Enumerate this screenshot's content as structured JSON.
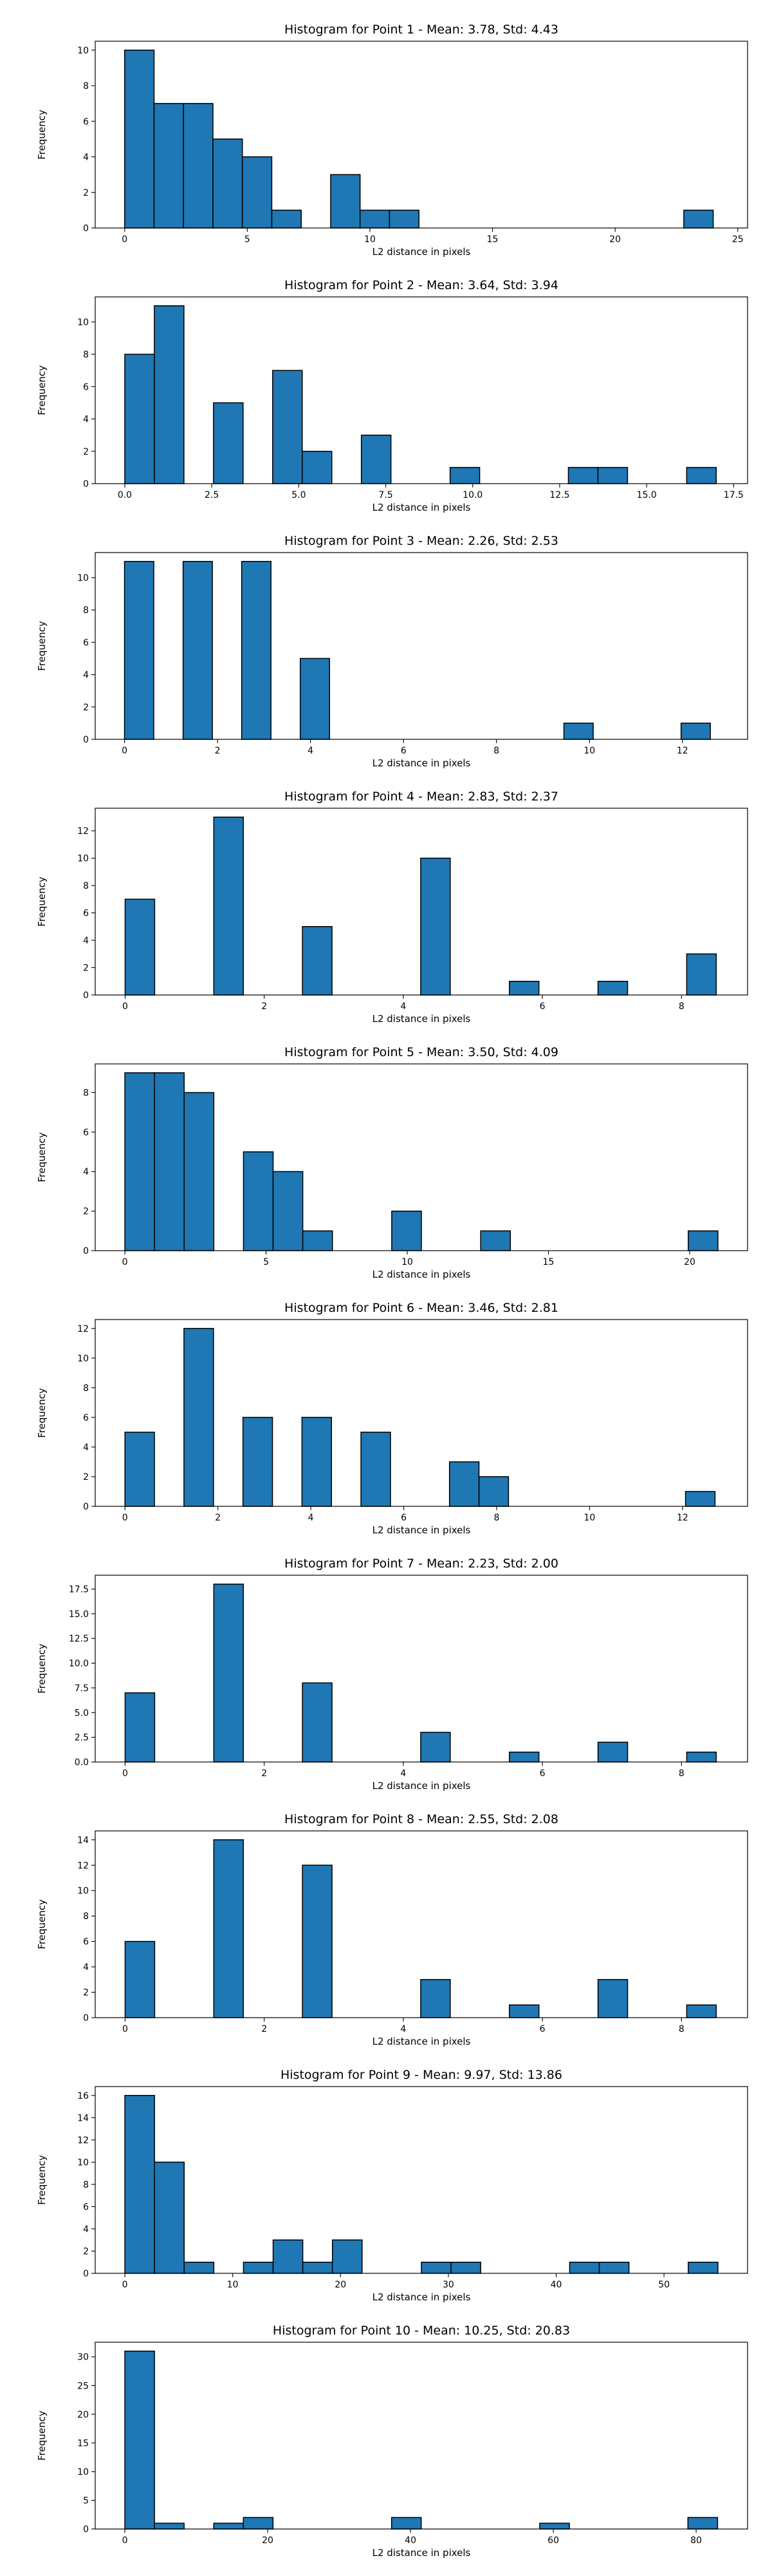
{
  "chart_data": [
    {
      "type": "bar",
      "title": "Histogram for Point 1 - Mean: 3.78, Std: 4.43",
      "xlabel": "L2 distance in pixels",
      "ylabel": "Frequency",
      "xlim": [
        -1.2,
        25.4
      ],
      "ylim": [
        0,
        10.5
      ],
      "xticks": [
        0,
        5,
        10,
        15,
        20,
        25
      ],
      "xtick_labels": [
        "0",
        "5",
        "10",
        "15",
        "20",
        "25"
      ],
      "yticks": [
        0,
        2,
        4,
        6,
        8,
        10
      ],
      "ytick_labels": [
        "0",
        "2",
        "4",
        "6",
        "8",
        "10"
      ],
      "bar_width": 1.2,
      "bars": [
        {
          "x": 0,
          "count": 10
        },
        {
          "x": 1.2,
          "count": 7
        },
        {
          "x": 2.4,
          "count": 7
        },
        {
          "x": 3.6,
          "count": 5
        },
        {
          "x": 4.8,
          "count": 4
        },
        {
          "x": 6.0,
          "count": 1
        },
        {
          "x": 8.4,
          "count": 3
        },
        {
          "x": 9.6,
          "count": 1
        },
        {
          "x": 10.8,
          "count": 1
        },
        {
          "x": 22.8,
          "count": 1
        }
      ]
    },
    {
      "type": "bar",
      "title": "Histogram for Point 2 - Mean: 3.64, Std: 3.94",
      "xlabel": "L2 distance in pixels",
      "ylabel": "Frequency",
      "xlim": [
        -0.85,
        17.9
      ],
      "ylim": [
        0,
        11.55
      ],
      "xticks": [
        0,
        2.5,
        5,
        7.5,
        10,
        12.5,
        15,
        17.5
      ],
      "xtick_labels": [
        "0.0",
        "2.5",
        "5.0",
        "7.5",
        "10.0",
        "12.5",
        "15.0",
        "17.5"
      ],
      "yticks": [
        0,
        2,
        4,
        6,
        8,
        10
      ],
      "ytick_labels": [
        "0",
        "2",
        "4",
        "6",
        "8",
        "10"
      ],
      "bar_width": 0.85,
      "bars": [
        {
          "x": 0,
          "count": 8
        },
        {
          "x": 0.85,
          "count": 11
        },
        {
          "x": 2.55,
          "count": 5
        },
        {
          "x": 4.25,
          "count": 7
        },
        {
          "x": 5.1,
          "count": 2
        },
        {
          "x": 6.8,
          "count": 3
        },
        {
          "x": 9.35,
          "count": 1
        },
        {
          "x": 12.75,
          "count": 1
        },
        {
          "x": 13.6,
          "count": 1
        },
        {
          "x": 16.15,
          "count": 1
        }
      ]
    },
    {
      "type": "bar",
      "title": "Histogram for Point 3 - Mean: 2.26, Std: 2.53",
      "xlabel": "L2 distance in pixels",
      "ylabel": "Frequency",
      "xlim": [
        -0.63,
        13.4
      ],
      "ylim": [
        0,
        11.55
      ],
      "xticks": [
        0,
        2,
        4,
        6,
        8,
        10,
        12
      ],
      "xtick_labels": [
        "0",
        "2",
        "4",
        "6",
        "8",
        "10",
        "12"
      ],
      "yticks": [
        0,
        2,
        4,
        6,
        8,
        10
      ],
      "ytick_labels": [
        "0",
        "2",
        "4",
        "6",
        "8",
        "10"
      ],
      "bar_width": 0.63,
      "bars": [
        {
          "x": 0,
          "count": 11
        },
        {
          "x": 1.26,
          "count": 11
        },
        {
          "x": 2.52,
          "count": 11
        },
        {
          "x": 3.78,
          "count": 5
        },
        {
          "x": 9.45,
          "count": 1
        },
        {
          "x": 11.97,
          "count": 1
        }
      ]
    },
    {
      "type": "bar",
      "title": "Histogram for Point 4 - Mean: 2.83, Std: 2.37",
      "xlabel": "L2 distance in pixels",
      "ylabel": "Frequency",
      "xlim": [
        -0.43,
        8.95
      ],
      "ylim": [
        0,
        13.65
      ],
      "xticks": [
        0,
        2,
        4,
        6,
        8
      ],
      "xtick_labels": [
        "0",
        "2",
        "4",
        "6",
        "8"
      ],
      "yticks": [
        0,
        2,
        4,
        6,
        8,
        10,
        12
      ],
      "ytick_labels": [
        "0",
        "2",
        "4",
        "6",
        "8",
        "10",
        "12"
      ],
      "bar_width": 0.425,
      "bars": [
        {
          "x": 0,
          "count": 7
        },
        {
          "x": 1.275,
          "count": 13
        },
        {
          "x": 2.55,
          "count": 5
        },
        {
          "x": 4.25,
          "count": 10
        },
        {
          "x": 5.525,
          "count": 1
        },
        {
          "x": 6.8,
          "count": 1
        },
        {
          "x": 8.075,
          "count": 3
        }
      ]
    },
    {
      "type": "bar",
      "title": "Histogram for Point 5 - Mean: 3.50, Std: 4.09",
      "xlabel": "L2 distance in pixels",
      "ylabel": "Frequency",
      "xlim": [
        -1.05,
        22.05
      ],
      "ylim": [
        0,
        9.45
      ],
      "xticks": [
        0,
        5,
        10,
        15,
        20
      ],
      "xtick_labels": [
        "0",
        "5",
        "10",
        "15",
        "20"
      ],
      "yticks": [
        0,
        2,
        4,
        6,
        8
      ],
      "ytick_labels": [
        "0",
        "2",
        "4",
        "6",
        "8"
      ],
      "bar_width": 1.05,
      "bars": [
        {
          "x": 0,
          "count": 9
        },
        {
          "x": 1.05,
          "count": 9
        },
        {
          "x": 2.1,
          "count": 8
        },
        {
          "x": 4.2,
          "count": 5
        },
        {
          "x": 5.25,
          "count": 4
        },
        {
          "x": 6.3,
          "count": 1
        },
        {
          "x": 9.45,
          "count": 2
        },
        {
          "x": 12.6,
          "count": 1
        },
        {
          "x": 19.95,
          "count": 1
        }
      ]
    },
    {
      "type": "bar",
      "title": "Histogram for Point 6 - Mean: 3.46, Std: 2.81",
      "xlabel": "L2 distance in pixels",
      "ylabel": "Frequency",
      "xlim": [
        -0.64,
        13.4
      ],
      "ylim": [
        0,
        12.6
      ],
      "xticks": [
        0,
        2,
        4,
        6,
        8,
        10,
        12
      ],
      "xtick_labels": [
        "0",
        "2",
        "4",
        "6",
        "8",
        "10",
        "12"
      ],
      "yticks": [
        0,
        2,
        4,
        6,
        8,
        10,
        12
      ],
      "ytick_labels": [
        "0",
        "2",
        "4",
        "6",
        "8",
        "10",
        "12"
      ],
      "bar_width": 0.635,
      "bars": [
        {
          "x": 0,
          "count": 5
        },
        {
          "x": 1.27,
          "count": 12
        },
        {
          "x": 2.54,
          "count": 6
        },
        {
          "x": 3.81,
          "count": 6
        },
        {
          "x": 5.08,
          "count": 5
        },
        {
          "x": 6.985,
          "count": 3
        },
        {
          "x": 7.62,
          "count": 2
        },
        {
          "x": 12.065,
          "count": 1
        }
      ]
    },
    {
      "type": "bar",
      "title": "Histogram for Point 7 - Mean: 2.23, Std: 2.00",
      "xlabel": "L2 distance in pixels",
      "ylabel": "Frequency",
      "xlim": [
        -0.43,
        8.95
      ],
      "ylim": [
        0,
        18.9
      ],
      "xticks": [
        0,
        2,
        4,
        6,
        8
      ],
      "xtick_labels": [
        "0",
        "2",
        "4",
        "6",
        "8"
      ],
      "yticks": [
        0,
        2.5,
        5,
        7.5,
        10,
        12.5,
        15,
        17.5
      ],
      "ytick_labels": [
        "0.0",
        "2.5",
        "5.0",
        "7.5",
        "10.0",
        "12.5",
        "15.0",
        "17.5"
      ],
      "bar_width": 0.425,
      "bars": [
        {
          "x": 0,
          "count": 7
        },
        {
          "x": 1.275,
          "count": 18
        },
        {
          "x": 2.55,
          "count": 8
        },
        {
          "x": 4.25,
          "count": 3
        },
        {
          "x": 5.525,
          "count": 1
        },
        {
          "x": 6.8,
          "count": 2
        },
        {
          "x": 8.075,
          "count": 1
        }
      ]
    },
    {
      "type": "bar",
      "title": "Histogram for Point 8 - Mean: 2.55, Std: 2.08",
      "xlabel": "L2 distance in pixels",
      "ylabel": "Frequency",
      "xlim": [
        -0.43,
        8.95
      ],
      "ylim": [
        0,
        14.7
      ],
      "xticks": [
        0,
        2,
        4,
        6,
        8
      ],
      "xtick_labels": [
        "0",
        "2",
        "4",
        "6",
        "8"
      ],
      "yticks": [
        0,
        2,
        4,
        6,
        8,
        10,
        12,
        14
      ],
      "ytick_labels": [
        "0",
        "2",
        "4",
        "6",
        "8",
        "10",
        "12",
        "14"
      ],
      "bar_width": 0.425,
      "bars": [
        {
          "x": 0,
          "count": 6
        },
        {
          "x": 1.275,
          "count": 14
        },
        {
          "x": 2.55,
          "count": 12
        },
        {
          "x": 4.25,
          "count": 3
        },
        {
          "x": 5.525,
          "count": 1
        },
        {
          "x": 6.8,
          "count": 3
        },
        {
          "x": 8.075,
          "count": 1
        }
      ]
    },
    {
      "type": "bar",
      "title": "Histogram for Point 9 - Mean: 9.97, Std: 13.86",
      "xlabel": "L2 distance in pixels",
      "ylabel": "Frequency",
      "xlim": [
        -2.75,
        57.75
      ],
      "ylim": [
        0,
        16.8
      ],
      "xticks": [
        0,
        10,
        20,
        30,
        40,
        50
      ],
      "xtick_labels": [
        "0",
        "10",
        "20",
        "30",
        "40",
        "50"
      ],
      "yticks": [
        0,
        2,
        4,
        6,
        8,
        10,
        12,
        14,
        16
      ],
      "ytick_labels": [
        "0",
        "2",
        "4",
        "6",
        "8",
        "10",
        "12",
        "14",
        "16"
      ],
      "bar_width": 2.75,
      "bars": [
        {
          "x": 0,
          "count": 16
        },
        {
          "x": 2.75,
          "count": 10
        },
        {
          "x": 5.5,
          "count": 1
        },
        {
          "x": 11.0,
          "count": 1
        },
        {
          "x": 13.75,
          "count": 3
        },
        {
          "x": 16.5,
          "count": 1
        },
        {
          "x": 19.25,
          "count": 3
        },
        {
          "x": 27.5,
          "count": 1
        },
        {
          "x": 30.25,
          "count": 1
        },
        {
          "x": 41.25,
          "count": 1
        },
        {
          "x": 44.0,
          "count": 1
        },
        {
          "x": 52.25,
          "count": 1
        }
      ]
    },
    {
      "type": "bar",
      "title": "Histogram for Point 10 - Mean: 10.25, Std: 20.83",
      "xlabel": "L2 distance in pixels",
      "ylabel": "Frequency",
      "xlim": [
        -4.15,
        87.2
      ],
      "ylim": [
        0,
        32.55
      ],
      "xticks": [
        0,
        20,
        40,
        60,
        80
      ],
      "xtick_labels": [
        "0",
        "20",
        "40",
        "60",
        "80"
      ],
      "yticks": [
        0,
        5,
        10,
        15,
        20,
        25,
        30
      ],
      "ytick_labels": [
        "0",
        "5",
        "10",
        "15",
        "20",
        "25",
        "30"
      ],
      "bar_width": 4.15,
      "bars": [
        {
          "x": 0,
          "count": 31
        },
        {
          "x": 4.15,
          "count": 1
        },
        {
          "x": 12.45,
          "count": 1
        },
        {
          "x": 16.6,
          "count": 2
        },
        {
          "x": 37.35,
          "count": 2
        },
        {
          "x": 58.1,
          "count": 1
        },
        {
          "x": 78.85,
          "count": 2
        }
      ]
    }
  ]
}
